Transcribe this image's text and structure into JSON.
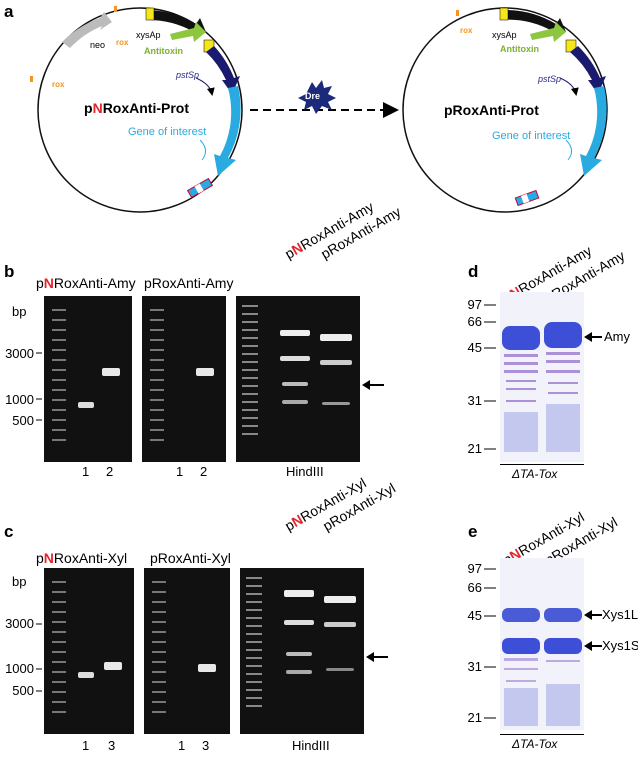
{
  "panels": {
    "a": {
      "letter": "a",
      "left_plasmid": {
        "name_prefix": "p",
        "name_red": "N",
        "name_suffix": "RoxAnti-Prot",
        "labels": {
          "neo": "neo",
          "rox1": "rox",
          "rox2": "rox",
          "xysap": "xysAp",
          "antitoxin": "Antitoxin",
          "pstsp": "pstSp",
          "goi": "Gene of interest"
        }
      },
      "right_plasmid": {
        "name": "pRoxAnti-Prot",
        "labels": {
          "rox": "rox",
          "xysap": "xysAp",
          "antitoxin": "Antitoxin",
          "pstsp": "pstSp",
          "goi": "Gene of interest"
        }
      },
      "enzyme": "Dre"
    },
    "b": {
      "letter": "b",
      "bp_label": "bp",
      "markers": [
        "3000",
        "1000",
        "500"
      ],
      "gel1_title_prefix": "p",
      "gel1_title_red": "N",
      "gel1_title_suffix": "RoxAnti-Amy",
      "gel1_lanes": [
        "1",
        "2"
      ],
      "gel2_title": "pRoxAnti-Amy",
      "gel2_lanes": [
        "1",
        "2"
      ],
      "gel3_lane1_prefix": "p",
      "gel3_lane1_red": "N",
      "gel3_lane1_suffix": "RoxAnti-Amy",
      "gel3_lane2": "pRoxAnti-Amy",
      "gel3_caption": "HindIII"
    },
    "c": {
      "letter": "c",
      "bp_label": "bp",
      "markers": [
        "3000",
        "1000",
        "500"
      ],
      "gel1_title_prefix": "p",
      "gel1_title_red": "N",
      "gel1_title_suffix": "RoxAnti-Xyl",
      "gel1_lanes": [
        "1",
        "3"
      ],
      "gel2_title": "pRoxAnti-Xyl",
      "gel2_lanes": [
        "1",
        "3"
      ],
      "gel3_lane1_prefix": "p",
      "gel3_lane1_red": "N",
      "gel3_lane1_suffix": "RoxAnti-Xyl",
      "gel3_lane2": "pRoxAnti-Xyl",
      "gel3_caption": "HindIII"
    },
    "d": {
      "letter": "d",
      "markers": [
        "97",
        "66",
        "45",
        "31",
        "21"
      ],
      "lane1_prefix": "p",
      "lane1_red": "N",
      "lane1_suffix": "RoxAnti-Amy",
      "lane2": "pRoxAnti-Amy",
      "band_label": "Amy",
      "strain": "ΔTA-Tox"
    },
    "e": {
      "letter": "e",
      "markers": [
        "97",
        "66",
        "45",
        "31",
        "21"
      ],
      "lane1_prefix": "p",
      "lane1_red": "N",
      "lane1_suffix": "RoxAnti-Xyl",
      "lane2": "pRoxAnti-Xyl",
      "band_label_1": "Xys1L",
      "band_label_2": "Xys1S",
      "strain": "ΔTA-Tox"
    }
  }
}
